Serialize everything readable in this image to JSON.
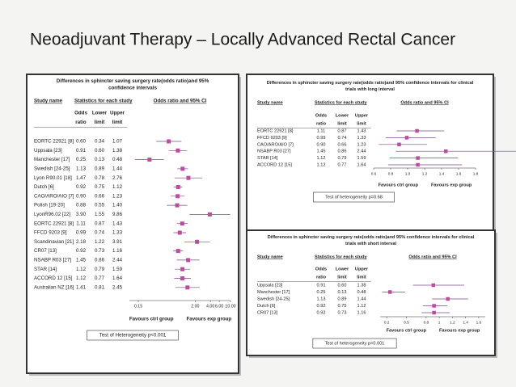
{
  "header": {
    "title": "Neoadjuvant Therapy – Locally Advanced Rectal Cancer"
  },
  "panels": [
    {
      "title": "Differences in sphincter saving surgery rate(odds ratio)and 95% confidence intervals",
      "columns": [
        "Study name",
        "Statistics for each study",
        "Odds ratio and 95% CI"
      ],
      "subcolumns": [
        [
          "Odds",
          "ratio"
        ],
        [
          "Lower",
          "limit"
        ],
        [
          "Upper",
          "limit"
        ]
      ],
      "rows": [
        [
          "EORTC 22921 [8]",
          0.6,
          0.34,
          1.07
        ],
        [
          "Uppsala [23]",
          0.91,
          0.6,
          1.38
        ],
        [
          "Manchester [17]",
          0.25,
          0.13,
          0.48
        ],
        [
          "Swedish [24-25]",
          1.13,
          0.89,
          1.44
        ],
        [
          "Lyon R90.01 [18]",
          1.47,
          0.78,
          2.76
        ],
        [
          "Dutch [6]",
          0.92,
          0.75,
          1.12
        ],
        [
          "CAO/ARO/AIO [7]",
          0.9,
          0.66,
          1.23
        ],
        [
          "Polish [19-20]",
          0.88,
          0.55,
          1.4
        ],
        [
          "LyonR96.02 [22]",
          3.9,
          1.55,
          9.86
        ],
        [
          "EORTC 22921 [8]",
          1.11,
          0.87,
          1.43
        ],
        [
          "FFCD 9203 [9]",
          0.99,
          0.74,
          1.33
        ],
        [
          "Scandinavian [21]",
          2.18,
          1.22,
          3.91
        ],
        [
          "CR07 [13]",
          0.92,
          0.73,
          1.16
        ],
        [
          "NSABP R03 [27]",
          1.45,
          0.86,
          2.44
        ],
        [
          "STAR [14]",
          1.12,
          0.79,
          1.59
        ],
        [
          "ACCORD 12 [15]",
          1.12,
          0.77,
          1.64
        ],
        [
          "Australian NZ [16]",
          1.41,
          0.81,
          2.45
        ]
      ],
      "log": true,
      "xlim": [
        0.1,
        10
      ],
      "xticks": [
        {
          "value": 0.15,
          "label": "0.15"
        },
        {
          "value": 2,
          "label": "2.00"
        },
        {
          "value": 4,
          "label": "4.00"
        },
        {
          "value": 6,
          "label": "6.00"
        },
        {
          "value": 10,
          "label": "10.00"
        }
      ],
      "favours": [
        "Favours ctrl group",
        "Favours exp group"
      ],
      "heterogeneity": "Test of Heterogeneity p<0.001"
    },
    {
      "title": "Differences in sphincter saving surgery rate(odds ratio)and 95% confidence intervals for clinical trials with long interval",
      "columns": [
        "Study name",
        "Statistics for each study",
        "Odds ratio and 95% CI"
      ],
      "subcolumns": [
        [
          "Odds",
          "ratio"
        ],
        [
          "Lower",
          "limit"
        ],
        [
          "Upper",
          "limit"
        ]
      ],
      "rows": [
        [
          "EORTC 22921 [8]",
          1.11,
          0.87,
          1.43
        ],
        [
          "FFCD 9203 [9]",
          0.99,
          0.74,
          1.33
        ],
        [
          "CAO/ARO/AIO [7]",
          0.9,
          0.66,
          1.23
        ],
        [
          "NSABP R03 [27]",
          1.45,
          0.86,
          2.44
        ],
        [
          "STAR [14]",
          1.12,
          0.79,
          1.59
        ],
        [
          "ACCORD 12 [15]",
          1.12,
          0.77,
          1.64
        ]
      ],
      "log": false,
      "xlim": [
        0.6,
        1.8
      ],
      "xticks": [
        0.6,
        0.8,
        {
          "value": 1,
          "label": "1.0"
        },
        1.2,
        1.4,
        1.6,
        1.8
      ],
      "favours": [
        "Favours ctrl group",
        "Favours exp group"
      ],
      "heterogeneity": "Test of heterogeneity p=0.68"
    },
    {
      "title": "Differences in sphincter saving surgery rate(odds ratio)and 95% confidence intervals for clinical trials with short interval",
      "columns": [
        "Study name",
        "Statistics for each study",
        "Odds ratio and 95% CI"
      ],
      "subcolumns": [
        [
          "Odds",
          "ratio"
        ],
        [
          "Lower",
          "limit"
        ],
        [
          "Upper",
          "limit"
        ]
      ],
      "rows": [
        [
          "Uppsala [23]",
          0.91,
          0.6,
          1.38
        ],
        [
          "Manchester [17]",
          0.25,
          0.13,
          0.48
        ],
        [
          "Swedish [24-25]",
          1.13,
          0.89,
          1.44
        ],
        [
          "Dutch [6]",
          0.92,
          0.75,
          1.12
        ],
        [
          "CR07 [13]",
          0.92,
          0.73,
          1.16
        ]
      ],
      "log": false,
      "xlim": [
        0.1,
        1.7
      ],
      "xticks": [
        0.2,
        0.5,
        0.8,
        1,
        1.2,
        1.4,
        1.6
      ],
      "favours": [
        "Favours ctrl group",
        "Favours exp group"
      ],
      "heterogeneity": "Test of heterogeneity p=0.001"
    }
  ]
}
